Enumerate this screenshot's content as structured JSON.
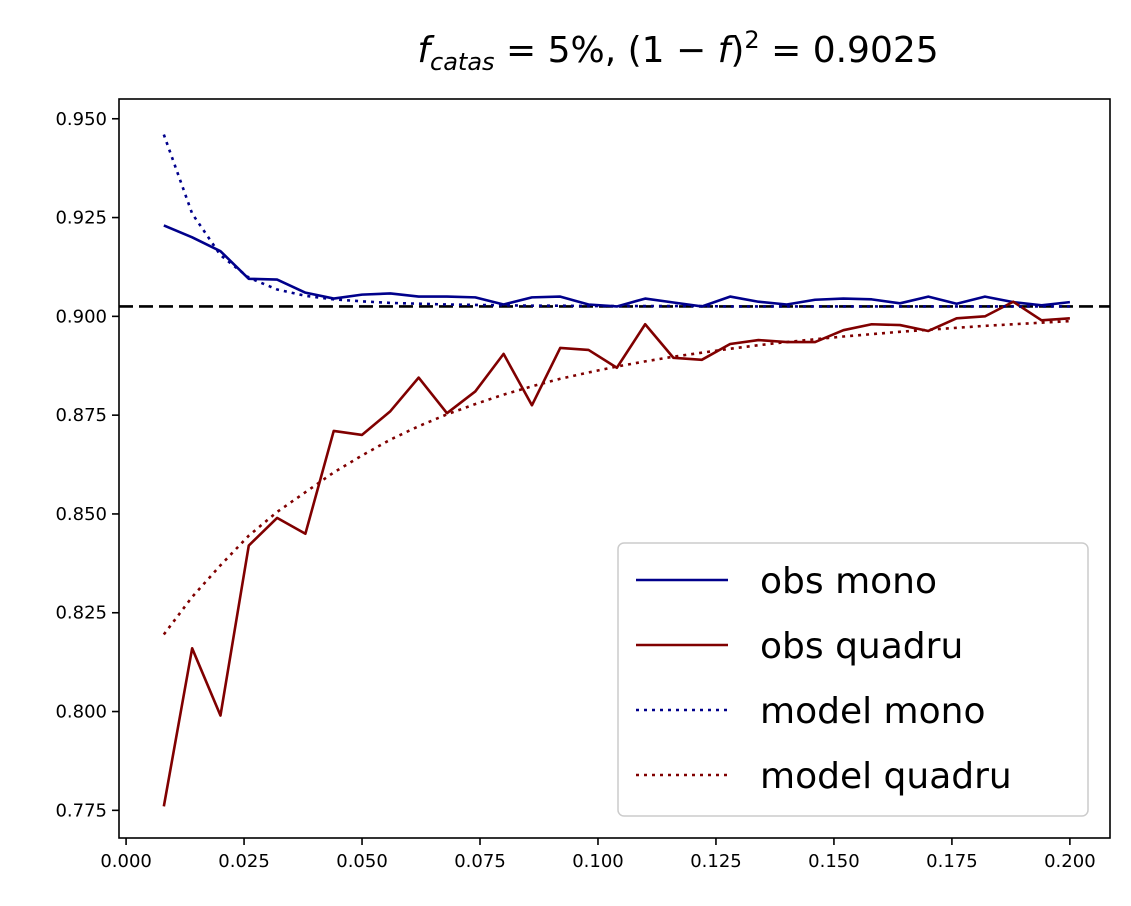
{
  "chart_data": {
    "type": "line",
    "title_parts": {
      "f": "f",
      "sub": "catas",
      "eq1": " = 5%,   (1 − ",
      "f2": "f",
      "close": ")",
      "sup": "2",
      "eq2": " = 0.9025"
    },
    "xlabel": "",
    "ylabel": "",
    "xlim": [
      -0.0015,
      0.2085
    ],
    "ylim": [
      0.768,
      0.955
    ],
    "xticks": [
      0.0,
      0.025,
      0.05,
      0.075,
      0.1,
      0.125,
      0.15,
      0.175,
      0.2
    ],
    "xtick_labels": [
      "0.000",
      "0.025",
      "0.050",
      "0.075",
      "0.100",
      "0.125",
      "0.150",
      "0.175",
      "0.200"
    ],
    "yticks": [
      0.775,
      0.8,
      0.825,
      0.85,
      0.875,
      0.9,
      0.925,
      0.95
    ],
    "ytick_labels": [
      "0.775",
      "0.800",
      "0.825",
      "0.850",
      "0.875",
      "0.900",
      "0.925",
      "0.950"
    ],
    "grid": false,
    "reference_line": {
      "y": 0.9025,
      "style": "dashed",
      "color": "#000000"
    },
    "legend_position": "lower-right",
    "x": [
      0.008,
      0.014,
      0.02,
      0.026,
      0.032,
      0.038,
      0.044,
      0.05,
      0.056,
      0.062,
      0.068,
      0.074,
      0.08,
      0.086,
      0.092,
      0.098,
      0.104,
      0.11,
      0.116,
      0.122,
      0.128,
      0.134,
      0.14,
      0.146,
      0.152,
      0.158,
      0.164,
      0.17,
      0.176,
      0.182,
      0.188,
      0.194,
      0.2
    ],
    "series": [
      {
        "name": "obs mono",
        "color": "#00008b",
        "style": "solid",
        "values": [
          0.923,
          0.92,
          0.9165,
          0.9095,
          0.9093,
          0.906,
          0.9045,
          0.9055,
          0.9058,
          0.905,
          0.905,
          0.9048,
          0.903,
          0.9048,
          0.905,
          0.903,
          0.9025,
          0.9045,
          0.9035,
          0.9025,
          0.905,
          0.9037,
          0.903,
          0.9042,
          0.9045,
          0.9043,
          0.9033,
          0.905,
          0.9032,
          0.905,
          0.9036,
          0.9028,
          0.9036
        ]
      },
      {
        "name": "obs quadru",
        "color": "#800000",
        "style": "solid",
        "values": [
          0.776,
          0.816,
          0.799,
          0.842,
          0.849,
          0.845,
          0.871,
          0.87,
          0.876,
          0.8845,
          0.8755,
          0.881,
          0.8905,
          0.8775,
          0.892,
          0.8915,
          0.887,
          0.898,
          0.8895,
          0.889,
          0.893,
          0.894,
          0.8935,
          0.8935,
          0.8965,
          0.898,
          0.8978,
          0.8963,
          0.8995,
          0.9,
          0.9037,
          0.899,
          0.8995
        ]
      },
      {
        "name": "model mono",
        "color": "#00008b",
        "style": "dotted",
        "values": [
          0.946,
          0.926,
          0.9155,
          0.9098,
          0.9068,
          0.9052,
          0.9043,
          0.9038,
          0.9034,
          0.9032,
          0.903,
          0.9029,
          0.9028,
          0.9027,
          0.9027,
          0.9026,
          0.9026,
          0.9026,
          0.9026,
          0.9026,
          0.9025,
          0.9025,
          0.9025,
          0.9025,
          0.9025,
          0.9025,
          0.9025,
          0.9025,
          0.9025,
          0.9025,
          0.9025,
          0.9025,
          0.9025
        ]
      },
      {
        "name": "model quadru",
        "color": "#800000",
        "style": "dotted",
        "values": [
          0.8195,
          0.829,
          0.837,
          0.8445,
          0.8505,
          0.8555,
          0.8605,
          0.8648,
          0.8688,
          0.8722,
          0.8752,
          0.8778,
          0.8802,
          0.8823,
          0.8842,
          0.8858,
          0.8873,
          0.8886,
          0.8898,
          0.8908,
          0.8918,
          0.8927,
          0.8935,
          0.8942,
          0.8949,
          0.8955,
          0.8961,
          0.8966,
          0.8971,
          0.8976,
          0.898,
          0.8984,
          0.8988
        ]
      }
    ]
  }
}
